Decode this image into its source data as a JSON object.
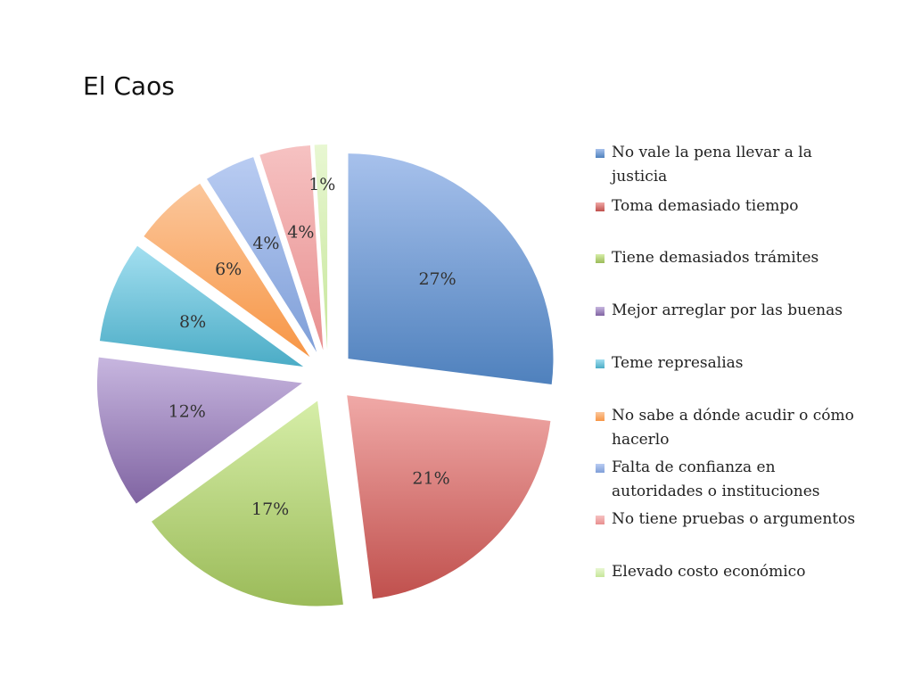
{
  "title": "El Caos",
  "chart_data": {
    "type": "pie",
    "title": "El Caos",
    "legend_position": "right",
    "exploded": true,
    "categories": [
      "No vale la pena llevar a la justicia",
      "Toma demasiado tiempo",
      "Tiene demasiados trámites",
      "Mejor arreglar por las buenas",
      "Teme represalias",
      "No sabe a dónde acudir o cómo hacerlo",
      "Falta de confianza en autoridades o instituciones",
      "No tiene pruebas o argumentos",
      "Elevado costo económico"
    ],
    "values": [
      27,
      21,
      17,
      12,
      8,
      6,
      4,
      4,
      1
    ],
    "labels": [
      "27%",
      "21%",
      "17%",
      "12%",
      "8%",
      "6%",
      "4%",
      "4%",
      "1%"
    ],
    "colors": [
      "#4f81bd",
      "#c0504d",
      "#9bbb59",
      "#8064a2",
      "#4bacc6",
      "#f79646",
      "#7f9fd8",
      "#e88f8f",
      "#c6e69a"
    ],
    "light_colors": [
      "#a7c1ec",
      "#f0a9a7",
      "#d6eea8",
      "#c7b6df",
      "#a3dff0",
      "#fbc79c",
      "#b9ccf2",
      "#f6c2c2",
      "#e8f7d2"
    ]
  }
}
